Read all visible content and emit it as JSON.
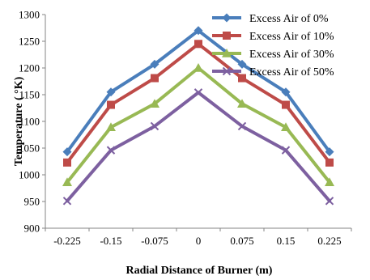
{
  "chart_data": {
    "type": "line",
    "title": "",
    "xlabel": "Radial  Distance of Burner (m)",
    "ylabel": "Temperature ( °K)",
    "categories": [
      "-0.225",
      "-0.15",
      "-0.075",
      "0",
      "0.075",
      "0.15",
      "0.225"
    ],
    "ylim": [
      900,
      1300
    ],
    "yticks": [
      900,
      950,
      1000,
      1050,
      1100,
      1150,
      1200,
      1250,
      1300
    ],
    "grid": false,
    "legend_position": "top-right",
    "series": [
      {
        "name": "Excess Air of  0%",
        "color": "#4a7ebb",
        "marker": "diamond",
        "values": [
          1043,
          1155,
          1207,
          1270,
          1207,
          1155,
          1043
        ]
      },
      {
        "name": "Excess Air of 10%",
        "color": "#be4b48",
        "marker": "square",
        "values": [
          1023,
          1131,
          1181,
          1245,
          1181,
          1131,
          1023
        ]
      },
      {
        "name": "Excess Air of  30%",
        "color": "#98b954",
        "marker": "triangle",
        "values": [
          986,
          1089,
          1133,
          1200,
          1133,
          1089,
          986
        ]
      },
      {
        "name": "Excess Air of  50%",
        "color": "#7d60a0",
        "marker": "x",
        "values": [
          951,
          1046,
          1091,
          1154,
          1091,
          1046,
          951
        ]
      }
    ]
  }
}
